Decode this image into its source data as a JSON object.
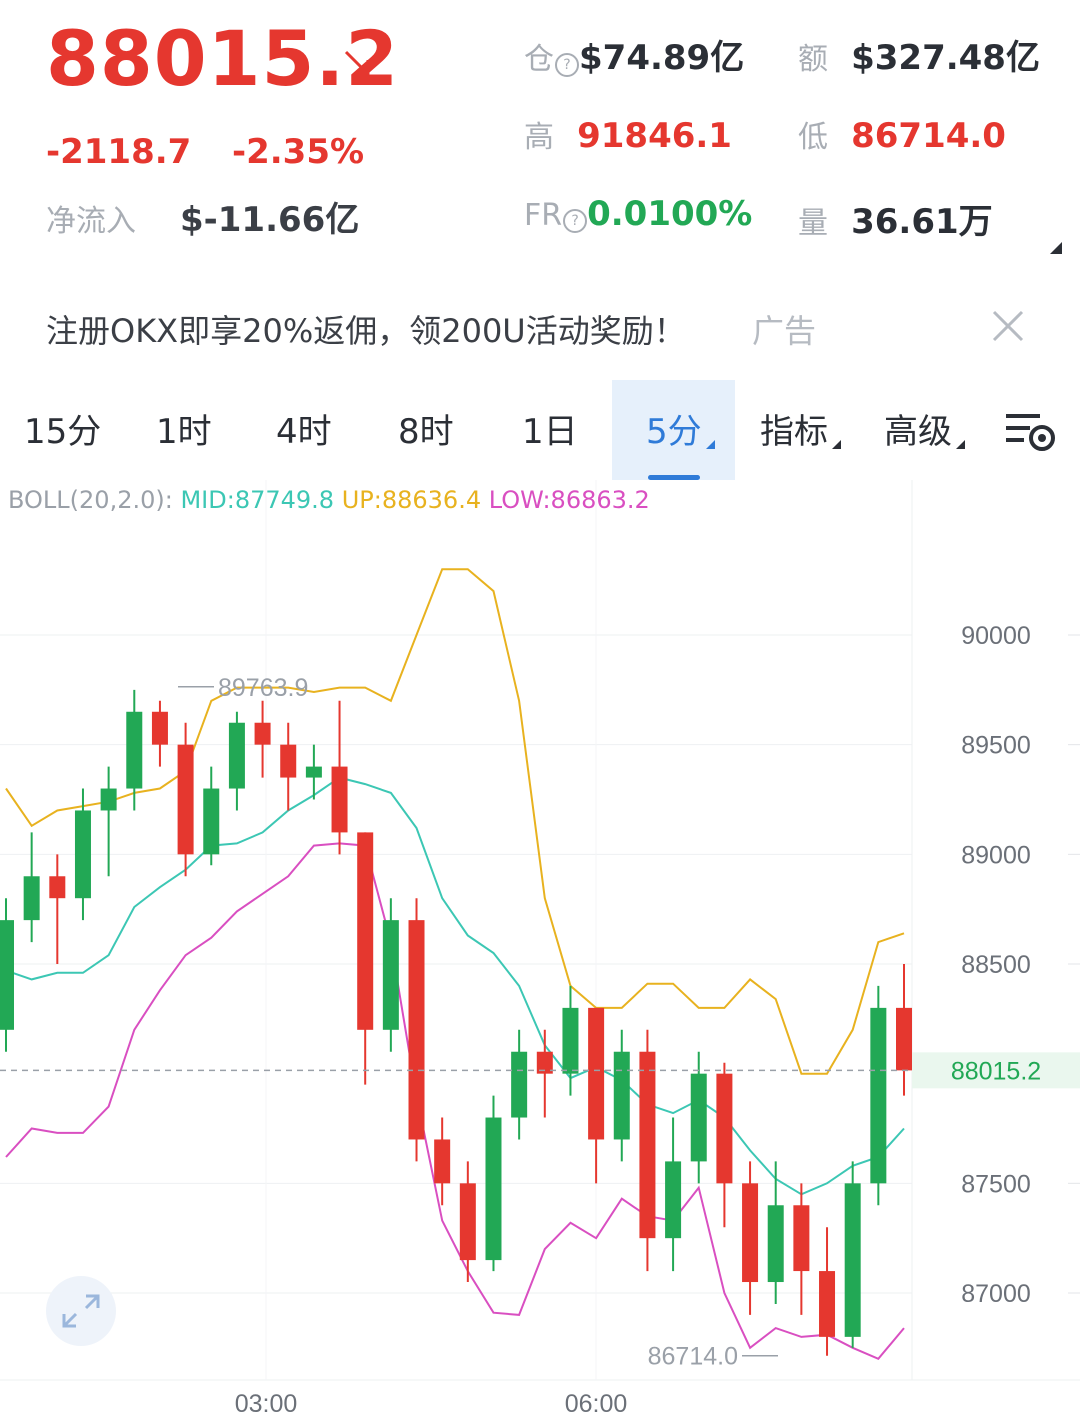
{
  "header": {
    "price": "88015.2",
    "change": "-2118.7",
    "change_pct": "-2.35%",
    "net_inflow_label": "净流入",
    "net_inflow_value": "$-11.66亿",
    "stats": {
      "oi_label": "仓",
      "oi_value": "$74.89亿",
      "amount_label": "额",
      "amount_value": "$327.48亿",
      "high_label": "高",
      "high_value": "91846.1",
      "low_label": "低",
      "low_value": "86714.0",
      "fr_label": "FR",
      "fr_value": "0.0100%",
      "volume_label": "量",
      "volume_value": "36.61万"
    },
    "colors": {
      "down": "#e5372f",
      "up": "#22a855"
    }
  },
  "ad": {
    "text": "注册OKX即享20%返佣，领200U活动奖励！",
    "tag": "广告"
  },
  "tabs": [
    {
      "label": "15分"
    },
    {
      "label": "1时"
    },
    {
      "label": "4时"
    },
    {
      "label": "8时"
    },
    {
      "label": "1日"
    },
    {
      "label": "5分",
      "active": true
    },
    {
      "label": "指标"
    },
    {
      "label": "高级"
    }
  ],
  "indicator": {
    "name": "BOLL(20,2.0):",
    "mid": "MID:87749.8",
    "up": "UP:88636.4",
    "low": "LOW:86863.2",
    "colors": {
      "mid": "#3cc7b4",
      "up": "#e8b21f",
      "low": "#d94fc1"
    }
  },
  "chart_data": {
    "type": "candlestick",
    "y_ticks": [
      "90000",
      "89500",
      "89000",
      "88500",
      "87500",
      "87000"
    ],
    "current_price_label": "88015.2",
    "x_ticks": [
      "03:00",
      "06:00"
    ],
    "high_marker": "89763.9",
    "low_marker": "86714.0",
    "ylim": [
      86600,
      90600
    ],
    "boll_up": [
      89300,
      89130,
      89200,
      89220,
      89240,
      89280,
      89300,
      89380,
      89700,
      89760,
      89760,
      89760,
      89740,
      89760,
      89760,
      89700,
      90000,
      90300,
      90300,
      90200,
      89700,
      88800,
      88400,
      88300,
      88300,
      88410,
      88410,
      88300,
      88300,
      88430,
      88340,
      88000,
      88000,
      88200,
      88600,
      88640
    ],
    "boll_mid": [
      88470,
      88430,
      88460,
      88460,
      88540,
      88760,
      88850,
      88930,
      89040,
      89050,
      89100,
      89200,
      89270,
      89350,
      89320,
      89280,
      89120,
      88800,
      88630,
      88550,
      88400,
      88130,
      87980,
      88030,
      87970,
      87860,
      87820,
      87880,
      87800,
      87650,
      87520,
      87450,
      87500,
      87580,
      87620,
      87750
    ],
    "boll_low": [
      87620,
      87750,
      87730,
      87730,
      87850,
      88200,
      88380,
      88540,
      88620,
      88740,
      88820,
      88900,
      89040,
      89050,
      89040,
      88600,
      87900,
      87330,
      87100,
      86910,
      86900,
      87200,
      87320,
      87250,
      87430,
      87350,
      87330,
      87480,
      87000,
      86750,
      86840,
      86800,
      86810,
      86750,
      86700,
      86840
    ],
    "candles": [
      [
        88200,
        88700,
        88100,
        88800
      ],
      [
        88700,
        88900,
        88600,
        89100
      ],
      [
        88900,
        88800,
        88500,
        89000
      ],
      [
        88800,
        89200,
        88700,
        89300
      ],
      [
        89200,
        89300,
        88900,
        89400
      ],
      [
        89300,
        89650,
        89200,
        89750
      ],
      [
        89650,
        89500,
        89400,
        89700
      ],
      [
        89500,
        89000,
        88900,
        89600
      ],
      [
        89000,
        89300,
        88950,
        89400
      ],
      [
        89300,
        89600,
        89200,
        89650
      ],
      [
        89600,
        89500,
        89350,
        89700
      ],
      [
        89500,
        89350,
        89200,
        89600
      ],
      [
        89350,
        89400,
        89250,
        89500
      ],
      [
        89400,
        89100,
        89000,
        89700
      ],
      [
        89100,
        88200,
        87950,
        89100
      ],
      [
        88200,
        88700,
        88100,
        88800
      ],
      [
        88700,
        87700,
        87600,
        88800
      ],
      [
        87700,
        87500,
        87400,
        87800
      ],
      [
        87500,
        87150,
        87050,
        87600
      ],
      [
        87150,
        87800,
        87100,
        87900
      ],
      [
        87800,
        88100,
        87700,
        88200
      ],
      [
        88100,
        88000,
        87800,
        88200
      ],
      [
        88000,
        88300,
        87900,
        88400
      ],
      [
        88300,
        87700,
        87500,
        88300
      ],
      [
        87700,
        88100,
        87600,
        88200
      ],
      [
        88100,
        87250,
        87100,
        88200
      ],
      [
        87250,
        87600,
        87100,
        87800
      ],
      [
        87600,
        88000,
        87500,
        88100
      ],
      [
        88000,
        87500,
        87300,
        88050
      ],
      [
        87500,
        87050,
        86900,
        87600
      ],
      [
        87050,
        87400,
        86950,
        87600
      ],
      [
        87400,
        87100,
        86900,
        87500
      ],
      [
        87100,
        86800,
        86714,
        87300
      ],
      [
        86800,
        87500,
        86750,
        87600
      ],
      [
        87500,
        88300,
        87400,
        88400
      ],
      [
        88300,
        88015,
        87900,
        88500
      ]
    ]
  }
}
